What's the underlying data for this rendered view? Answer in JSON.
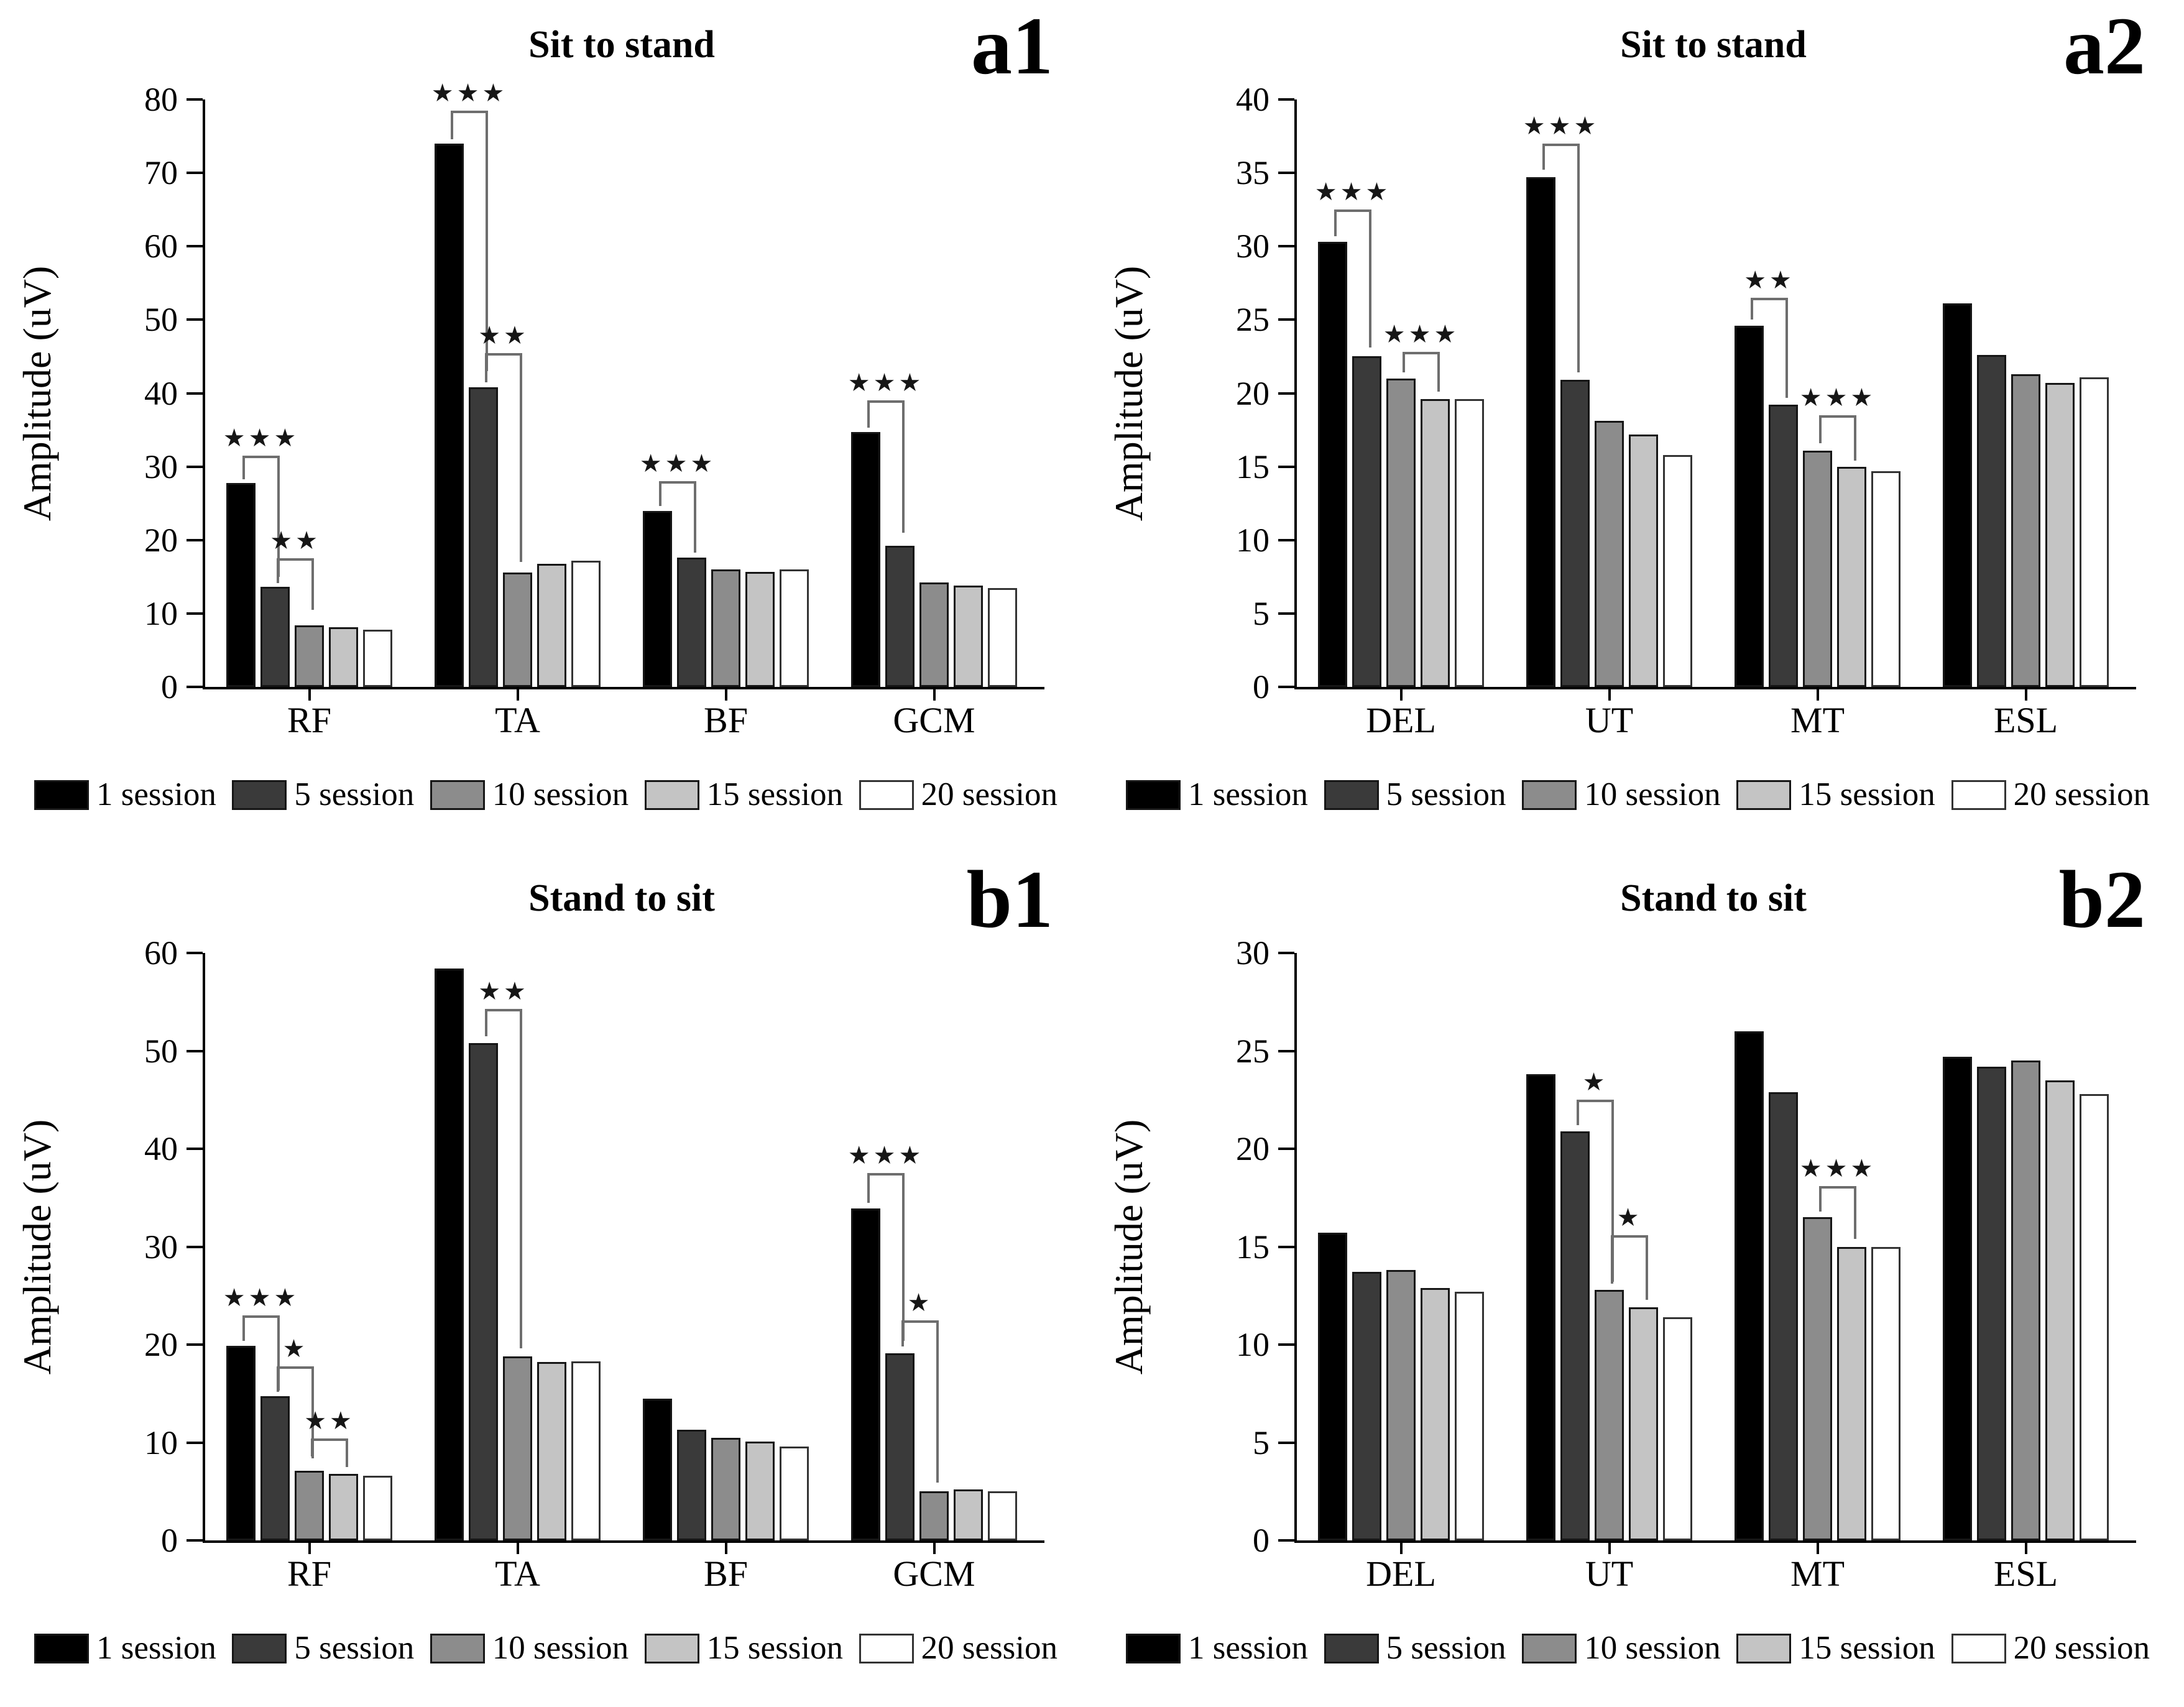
{
  "figure": {
    "series": [
      {
        "label": "1 session",
        "color": "#000000"
      },
      {
        "label": "5 session",
        "color": "#3a3a3a"
      },
      {
        "label": "10 session",
        "color": "#8c8c8c"
      },
      {
        "label": "15 session",
        "color": "#c4c4c4"
      },
      {
        "label": "20 session",
        "color": "#ffffff"
      }
    ],
    "accent_colors": {
      "axis": "#000000",
      "bracket_line": "#6e6e6e",
      "text": "#000000"
    }
  },
  "chart_data": [
    {
      "type": "bar",
      "panel_letter": "a1",
      "title": "Sit to stand",
      "ylabel": "Amplitude (uV)",
      "xlabel": "",
      "ylim": [
        0,
        80
      ],
      "ytick_step": 10,
      "ytick_labels": [
        "0",
        "10",
        "20",
        "30",
        "40",
        "50",
        "60",
        "70",
        "80"
      ],
      "grid": false,
      "legend_position": "bottom",
      "categories": [
        "RF",
        "TA",
        "BF",
        "GCM"
      ],
      "series": [
        {
          "name": "1 session",
          "values": [
            27.8,
            74.0,
            24.0,
            34.7
          ]
        },
        {
          "name": "5 session",
          "values": [
            13.6,
            40.8,
            17.6,
            19.2
          ]
        },
        {
          "name": "10 session",
          "values": [
            8.4,
            15.6,
            16.0,
            14.2
          ]
        },
        {
          "name": "15 session",
          "values": [
            8.1,
            16.8,
            15.7,
            13.8
          ]
        },
        {
          "name": "20 session",
          "values": [
            7.8,
            17.2,
            16.0,
            13.5
          ]
        }
      ],
      "significance": [
        {
          "category": "RF",
          "category_index": 0,
          "from": 0,
          "to": 1,
          "stars": "★★★",
          "y_top": 31.5,
          "y_left_end": 28.3,
          "y_right_end": 15.0
        },
        {
          "category": "RF",
          "category_index": 0,
          "from": 1,
          "to": 2,
          "stars": "★★",
          "y_top": 17.5,
          "y_left_end": 14.1,
          "y_right_end": 10.5
        },
        {
          "category": "TA",
          "category_index": 1,
          "from": 0,
          "to": 1,
          "stars": "★★★",
          "y_top": 78.5,
          "y_left_end": 74.6,
          "y_right_end": 43.0
        },
        {
          "category": "TA",
          "category_index": 1,
          "from": 1,
          "to": 2,
          "stars": "★★",
          "y_top": 45.5,
          "y_left_end": 41.5,
          "y_right_end": 17.0
        },
        {
          "category": "BF",
          "category_index": 2,
          "from": 0,
          "to": 1,
          "stars": "★★★",
          "y_top": 28.0,
          "y_left_end": 24.6,
          "y_right_end": 18.3
        },
        {
          "category": "GCM",
          "category_index": 3,
          "from": 0,
          "to": 1,
          "stars": "★★★",
          "y_top": 39.0,
          "y_left_end": 35.3,
          "y_right_end": 21.0
        }
      ]
    },
    {
      "type": "bar",
      "panel_letter": "a2",
      "title": "Sit to stand",
      "ylabel": "Amplitude (uV)",
      "xlabel": "",
      "ylim": [
        0,
        40
      ],
      "ytick_step": 5,
      "ytick_labels": [
        "0",
        "5",
        "10",
        "15",
        "20",
        "25",
        "30",
        "35",
        "40"
      ],
      "grid": false,
      "legend_position": "bottom",
      "categories": [
        "DEL",
        "UT",
        "MT",
        "ESL"
      ],
      "series": [
        {
          "name": "1 session",
          "values": [
            30.3,
            34.7,
            24.6,
            26.1
          ]
        },
        {
          "name": "5 session",
          "values": [
            22.5,
            20.9,
            19.2,
            22.6
          ]
        },
        {
          "name": "10 session",
          "values": [
            21.0,
            18.1,
            16.1,
            21.3
          ]
        },
        {
          "name": "15 session",
          "values": [
            19.6,
            17.2,
            15.0,
            20.7
          ]
        },
        {
          "name": "20 session",
          "values": [
            19.6,
            15.8,
            14.7,
            21.1
          ]
        }
      ],
      "significance": [
        {
          "category": "DEL",
          "category_index": 0,
          "from": 0,
          "to": 1,
          "stars": "★★★",
          "y_top": 32.5,
          "y_left_end": 30.7,
          "y_right_end": 23.1
        },
        {
          "category": "DEL",
          "category_index": 0,
          "from": 2,
          "to": 3,
          "stars": "★★★",
          "y_top": 22.8,
          "y_left_end": 21.4,
          "y_right_end": 20.1
        },
        {
          "category": "UT",
          "category_index": 1,
          "from": 0,
          "to": 1,
          "stars": "★★★",
          "y_top": 37.0,
          "y_left_end": 35.2,
          "y_right_end": 21.4
        },
        {
          "category": "MT",
          "category_index": 2,
          "from": 0,
          "to": 1,
          "stars": "★★",
          "y_top": 26.5,
          "y_left_end": 25.0,
          "y_right_end": 19.7
        },
        {
          "category": "MT",
          "category_index": 2,
          "from": 2,
          "to": 3,
          "stars": "★★★",
          "y_top": 18.5,
          "y_left_end": 16.6,
          "y_right_end": 15.4
        }
      ]
    },
    {
      "type": "bar",
      "panel_letter": "b1",
      "title": "Stand to sit",
      "ylabel": "Amplitude (uV)",
      "xlabel": "",
      "ylim": [
        0,
        60
      ],
      "ytick_step": 10,
      "ytick_labels": [
        "0",
        "10",
        "20",
        "30",
        "40",
        "50",
        "60"
      ],
      "grid": false,
      "legend_position": "bottom",
      "categories": [
        "RF",
        "TA",
        "BF",
        "GCM"
      ],
      "series": [
        {
          "name": "1 session",
          "values": [
            19.9,
            58.4,
            14.5,
            33.9
          ]
        },
        {
          "name": "5 session",
          "values": [
            14.7,
            50.8,
            11.3,
            19.1
          ]
        },
        {
          "name": "10 session",
          "values": [
            7.1,
            18.8,
            10.5,
            5.0
          ]
        },
        {
          "name": "15 session",
          "values": [
            6.8,
            18.2,
            10.1,
            5.2
          ]
        },
        {
          "name": "20 session",
          "values": [
            6.6,
            18.3,
            9.6,
            5.0
          ]
        }
      ],
      "significance": [
        {
          "category": "RF",
          "category_index": 0,
          "from": 0,
          "to": 1,
          "stars": "★★★",
          "y_top": 23.0,
          "y_left_end": 20.4,
          "y_right_end": 15.3
        },
        {
          "category": "RF",
          "category_index": 0,
          "from": 1,
          "to": 2,
          "stars": "★",
          "y_top": 17.8,
          "y_left_end": 15.2,
          "y_right_end": 8.4
        },
        {
          "category": "RF",
          "category_index": 0,
          "from": 2,
          "to": 3,
          "stars": "★★",
          "y_top": 10.4,
          "y_left_end": 8.6,
          "y_right_end": 7.5
        },
        {
          "category": "TA",
          "category_index": 1,
          "from": 1,
          "to": 2,
          "stars": "★★",
          "y_top": 54.3,
          "y_left_end": 51.5,
          "y_right_end": 19.6
        },
        {
          "category": "GCM",
          "category_index": 3,
          "from": 0,
          "to": 1,
          "stars": "★★★",
          "y_top": 37.5,
          "y_left_end": 34.5,
          "y_right_end": 20.4
        },
        {
          "category": "GCM",
          "category_index": 3,
          "from": 1,
          "to": 2,
          "stars": "★",
          "y_top": 22.5,
          "y_left_end": 19.8,
          "y_right_end": 5.9
        }
      ]
    },
    {
      "type": "bar",
      "panel_letter": "b2",
      "title": "Stand to sit",
      "ylabel": "Amplitude (uV)",
      "xlabel": "",
      "ylim": [
        0,
        30
      ],
      "ytick_step": 5,
      "ytick_labels": [
        "0",
        "5",
        "10",
        "15",
        "20",
        "25",
        "30"
      ],
      "grid": false,
      "legend_position": "bottom",
      "categories": [
        "DEL",
        "UT",
        "MT",
        "ESL"
      ],
      "series": [
        {
          "name": "1 session",
          "values": [
            15.7,
            23.8,
            26.0,
            24.7
          ]
        },
        {
          "name": "5 session",
          "values": [
            13.7,
            20.9,
            22.9,
            24.2
          ]
        },
        {
          "name": "10 session",
          "values": [
            13.8,
            12.8,
            16.5,
            24.5
          ]
        },
        {
          "name": "15 session",
          "values": [
            12.9,
            11.9,
            15.0,
            23.5
          ]
        },
        {
          "name": "20 session",
          "values": [
            12.7,
            11.4,
            15.0,
            22.8
          ]
        }
      ],
      "significance": [
        {
          "category": "UT",
          "category_index": 1,
          "from": 1,
          "to": 2,
          "stars": "★",
          "y_top": 22.5,
          "y_left_end": 21.2,
          "y_right_end": 13.2
        },
        {
          "category": "UT",
          "category_index": 1,
          "from": 2,
          "to": 3,
          "stars": "★",
          "y_top": 15.6,
          "y_left_end": 13.1,
          "y_right_end": 12.3
        },
        {
          "category": "MT",
          "category_index": 2,
          "from": 2,
          "to": 3,
          "stars": "★★★",
          "y_top": 18.1,
          "y_left_end": 16.8,
          "y_right_end": 15.4
        }
      ]
    }
  ]
}
